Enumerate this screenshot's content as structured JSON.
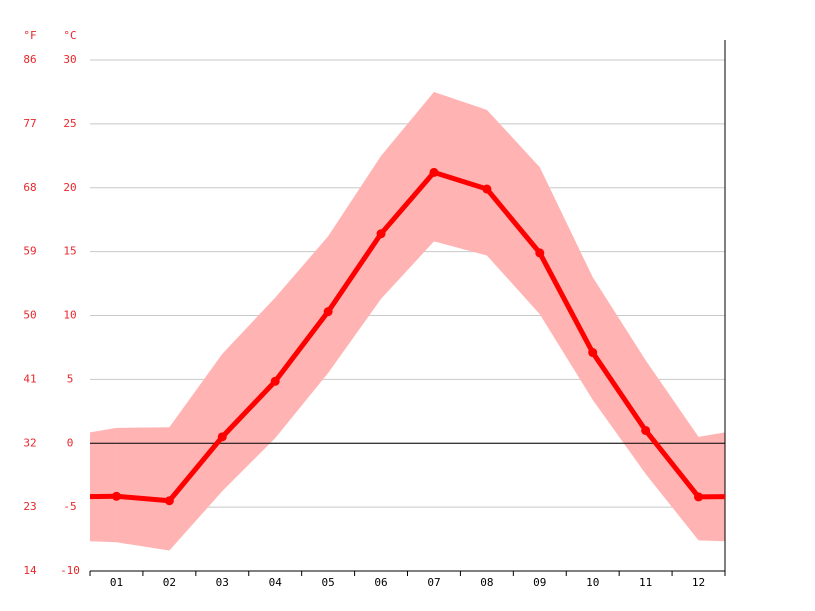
{
  "chart_data": {
    "type": "line",
    "y_unit_label": "°C",
    "y2_unit_label": "°F",
    "categories": [
      "01",
      "02",
      "03",
      "04",
      "05",
      "06",
      "07",
      "08",
      "09",
      "10",
      "11",
      "12"
    ],
    "series": [
      {
        "color": "#ff0000",
        "values": [
          -4.15,
          -4.5,
          0.5,
          4.85,
          10.3,
          16.4,
          21.2,
          19.9,
          14.9,
          7.1,
          1.0,
          -4.2
        ]
      }
    ],
    "band": {
      "color": "#ffb3b3",
      "high": [
        1.2,
        1.25,
        7.0,
        11.4,
        16.2,
        22.5,
        27.5,
        26.1,
        21.6,
        13.0,
        6.5,
        0.5
      ],
      "low": [
        -7.75,
        -8.4,
        -3.75,
        0.4,
        5.5,
        11.3,
        15.8,
        14.7,
        10.1,
        3.4,
        -2.4,
        -7.6
      ]
    },
    "ylim": [
      -10,
      30
    ],
    "yticks": [
      -10,
      -5,
      0,
      5,
      10,
      15,
      20,
      25,
      30
    ],
    "y2lim": [
      14,
      86
    ],
    "y2ticks": [
      14,
      23,
      32,
      41,
      50,
      59,
      68,
      77,
      86
    ],
    "grid": true
  }
}
